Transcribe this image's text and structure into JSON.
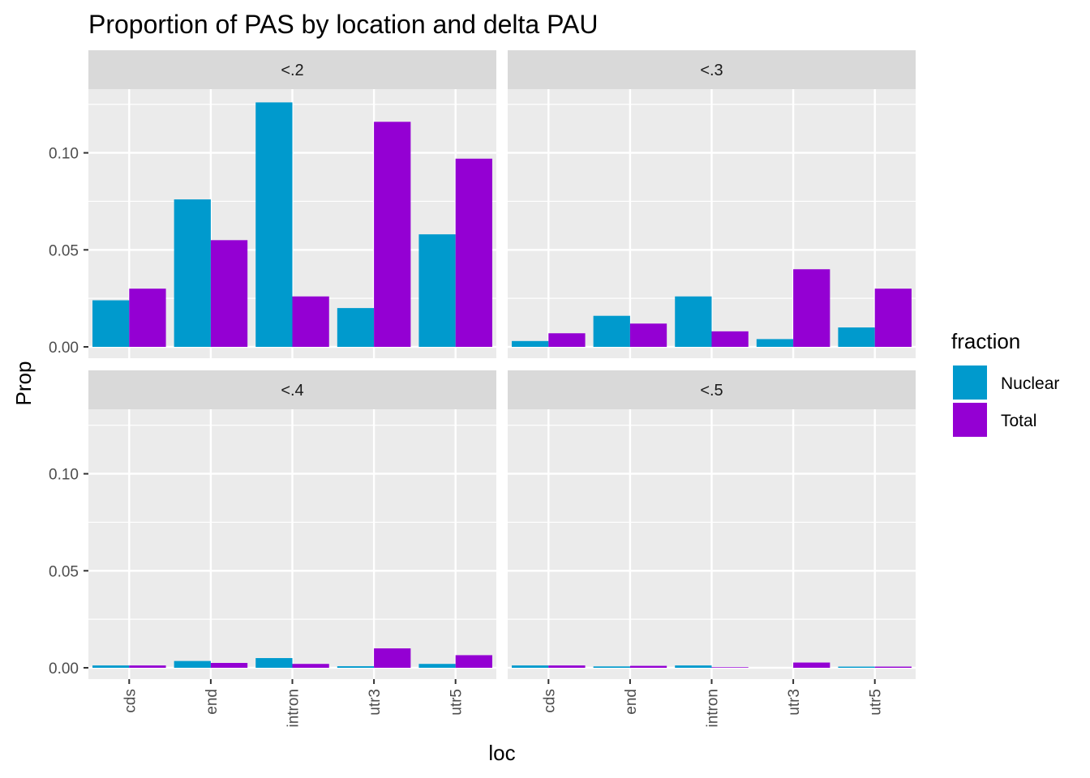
{
  "chart_data": {
    "type": "bar",
    "title": "Proportion of PAS by location and delta PAU",
    "xlabel": "loc",
    "ylabel": "Prop",
    "categories": [
      "cds",
      "end",
      "intron",
      "utr3",
      "utr5"
    ],
    "ylim": [
      0,
      0.14
    ],
    "yticks": [
      0.0,
      0.05,
      0.1
    ],
    "ytick_labels": [
      "0.00",
      "0.05",
      "0.10"
    ],
    "grid": true,
    "legend": {
      "title": "fraction",
      "position": "right",
      "entries": [
        {
          "name": "Nuclear",
          "color": "#009ACD"
        },
        {
          "name": "Total",
          "color": "#9400D3"
        }
      ]
    },
    "facets": [
      {
        "label": "<.2",
        "series": [
          {
            "name": "Nuclear",
            "values": [
              0.024,
              0.076,
              0.126,
              0.02,
              0.058
            ]
          },
          {
            "name": "Total",
            "values": [
              0.03,
              0.055,
              0.026,
              0.116,
              0.097
            ]
          }
        ]
      },
      {
        "label": "<.3",
        "series": [
          {
            "name": "Nuclear",
            "values": [
              0.003,
              0.016,
              0.026,
              0.004,
              0.01
            ]
          },
          {
            "name": "Total",
            "values": [
              0.007,
              0.012,
              0.008,
              0.04,
              0.03
            ]
          }
        ]
      },
      {
        "label": "<.4",
        "series": [
          {
            "name": "Nuclear",
            "values": [
              0.0012,
              0.0035,
              0.005,
              0.0008,
              0.002
            ]
          },
          {
            "name": "Total",
            "values": [
              0.0012,
              0.0025,
              0.002,
              0.01,
              0.0065
            ]
          }
        ]
      },
      {
        "label": "<.5",
        "series": [
          {
            "name": "Nuclear",
            "values": [
              0.0012,
              0.0007,
              0.0012,
              0.0,
              0.0006
            ]
          },
          {
            "name": "Total",
            "values": [
              0.0012,
              0.001,
              0.0003,
              0.0027,
              0.0006
            ]
          }
        ]
      }
    ]
  }
}
